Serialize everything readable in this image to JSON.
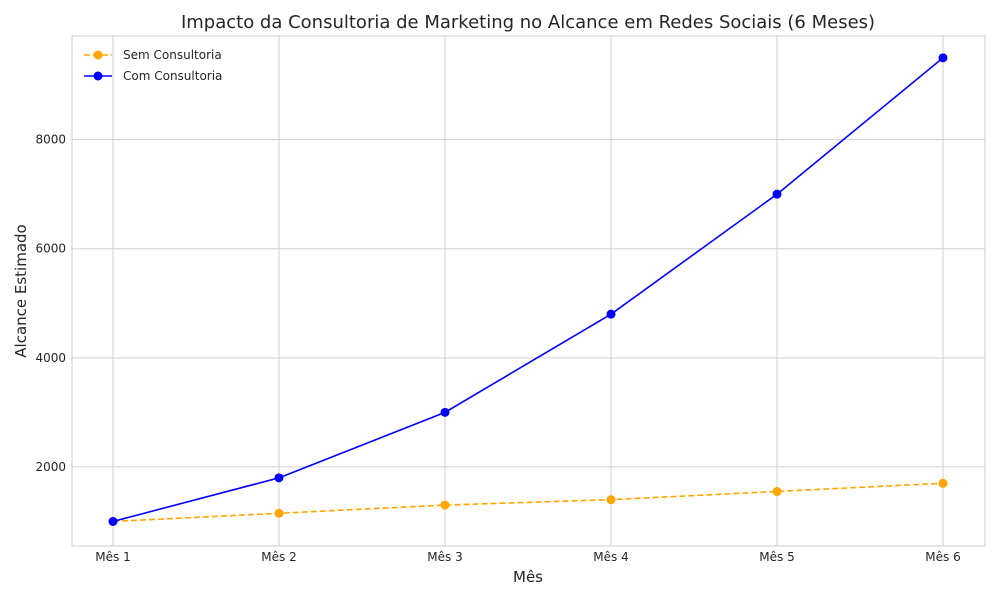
{
  "chart_data": {
    "type": "line",
    "title": "Impacto da Consultoria de Marketing no Alcance em Redes Sociais (6 Meses)",
    "xlabel": "Mês",
    "ylabel": "Alcance Estimado",
    "categories": [
      "Mês 1",
      "Mês 2",
      "Mês 3",
      "Mês 4",
      "Mês 5",
      "Mês 6"
    ],
    "ylim": [
      550,
      9900
    ],
    "yticks": [
      2000,
      4000,
      6000,
      8000
    ],
    "grid": true,
    "legend_position": "top-left",
    "series": [
      {
        "name": "Sem Consultoria",
        "values": [
          1000,
          1150,
          1300,
          1400,
          1550,
          1700
        ],
        "color": "#ffa500",
        "dashed": true
      },
      {
        "name": "Com Consultoria",
        "values": [
          1000,
          1800,
          3000,
          4800,
          7000,
          9500
        ],
        "color": "#0000ff",
        "dashed": false
      }
    ]
  }
}
